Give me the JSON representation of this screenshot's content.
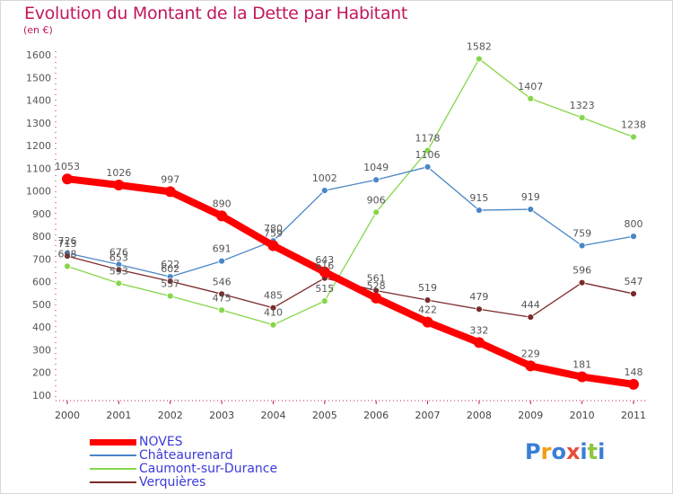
{
  "header": {
    "title": "Evolution du Montant de la Dette par Habitant",
    "unit": "(en €)"
  },
  "chart_data": {
    "type": "line",
    "title": "Evolution du Montant de la Dette par Habitant",
    "ylabel": "(en €)",
    "xlabel": "",
    "ylim": [
      100,
      1600
    ],
    "yticks": [
      100,
      200,
      300,
      400,
      500,
      600,
      700,
      800,
      900,
      1000,
      1100,
      1200,
      1300,
      1400,
      1500,
      1600
    ],
    "categories": [
      "2000",
      "2001",
      "2002",
      "2003",
      "2004",
      "2005",
      "2006",
      "2007",
      "2008",
      "2009",
      "2010",
      "2011"
    ],
    "grid": false,
    "legend_position": "bottom-left",
    "series": [
      {
        "name": "NOVES",
        "color": "#ff0000",
        "values": [
          1053,
          1026,
          997,
          890,
          759,
          643,
          528,
          422,
          332,
          229,
          181,
          148
        ]
      },
      {
        "name": "Châteaurenard",
        "color": "#4a86c8",
        "values": [
          726,
          676,
          622,
          691,
          780,
          1002,
          1049,
          1106,
          915,
          919,
          759,
          800
        ]
      },
      {
        "name": "Caumont-sur-Durance",
        "color": "#86d64a",
        "values": [
          668,
          593,
          537,
          475,
          410,
          515,
          906,
          1178,
          1582,
          1407,
          1323,
          1238
        ]
      },
      {
        "name": "Verquières",
        "color": "#7a2a2a",
        "values": [
          713,
          653,
          602,
          546,
          485,
          616,
          561,
          519,
          479,
          444,
          596,
          547
        ]
      }
    ]
  },
  "logo": {
    "letters": [
      "P",
      "r",
      "o",
      "x",
      "i",
      "t",
      "i"
    ],
    "colors": [
      "#3a7fd5",
      "#f39c12",
      "#3a7fd5",
      "#e74c3c",
      "#3a7fd5",
      "#8cc63f",
      "#3a7fd5"
    ]
  }
}
